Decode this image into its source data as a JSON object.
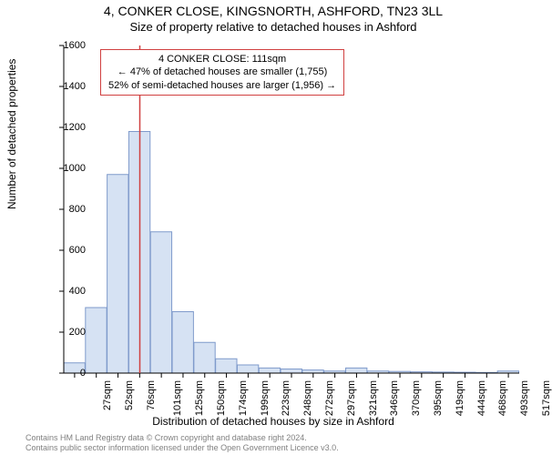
{
  "title": "4, CONKER CLOSE, KINGSNORTH, ASHFORD, TN23 3LL",
  "subtitle": "Size of property relative to detached houses in Ashford",
  "chart": {
    "type": "histogram",
    "ylabel": "Number of detached properties",
    "xlabel": "Distribution of detached houses by size in Ashford",
    "ylim": [
      0,
      1600
    ],
    "yticks": [
      0,
      200,
      400,
      600,
      800,
      1000,
      1200,
      1400,
      1600
    ],
    "xticks": [
      "27sqm",
      "52sqm",
      "76sqm",
      "101sqm",
      "125sqm",
      "150sqm",
      "174sqm",
      "199sqm",
      "223sqm",
      "248sqm",
      "272sqm",
      "297sqm",
      "321sqm",
      "346sqm",
      "370sqm",
      "395sqm",
      "419sqm",
      "444sqm",
      "468sqm",
      "493sqm",
      "517sqm"
    ],
    "values": [
      50,
      320,
      970,
      1180,
      690,
      300,
      150,
      70,
      40,
      25,
      20,
      15,
      10,
      25,
      10,
      8,
      6,
      5,
      4,
      3,
      10
    ],
    "bar_fill_color": "#d6e2f3",
    "bar_stroke_color": "#7f9acb",
    "axis_color": "#000000",
    "marker_line_color": "#d04040",
    "marker_x_value": 111,
    "x_range": [
      27,
      530
    ],
    "annotation": {
      "line1": "4 CONKER CLOSE: 111sqm",
      "line2": "← 47% of detached houses are smaller (1,755)",
      "line3": "52% of semi-detached houses are larger (1,956) →",
      "border_color": "#d04040"
    }
  },
  "footer": {
    "line1": "Contains HM Land Registry data © Crown copyright and database right 2024.",
    "line2": "Contains public sector information licensed under the Open Government Licence v3.0."
  }
}
